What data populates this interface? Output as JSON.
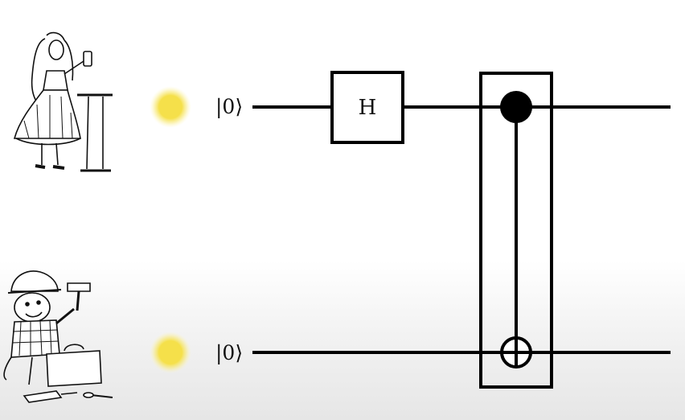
{
  "circuit": {
    "qubits": [
      {
        "owner_icon": "alice-illustration-icon",
        "state_indicator_color": "#f5e04a",
        "initial_state": "|0⟩"
      },
      {
        "owner_icon": "bob-the-builder-illustration-icon",
        "state_indicator_color": "#f5e04a",
        "initial_state": "|0⟩"
      }
    ],
    "gates": [
      {
        "type": "hadamard",
        "label": "H",
        "target_qubit": 0
      },
      {
        "type": "cnot",
        "control_qubit": 0,
        "target_qubit": 1
      }
    ]
  },
  "colors": {
    "wire": "#000000",
    "glow": "#f5e04a"
  }
}
